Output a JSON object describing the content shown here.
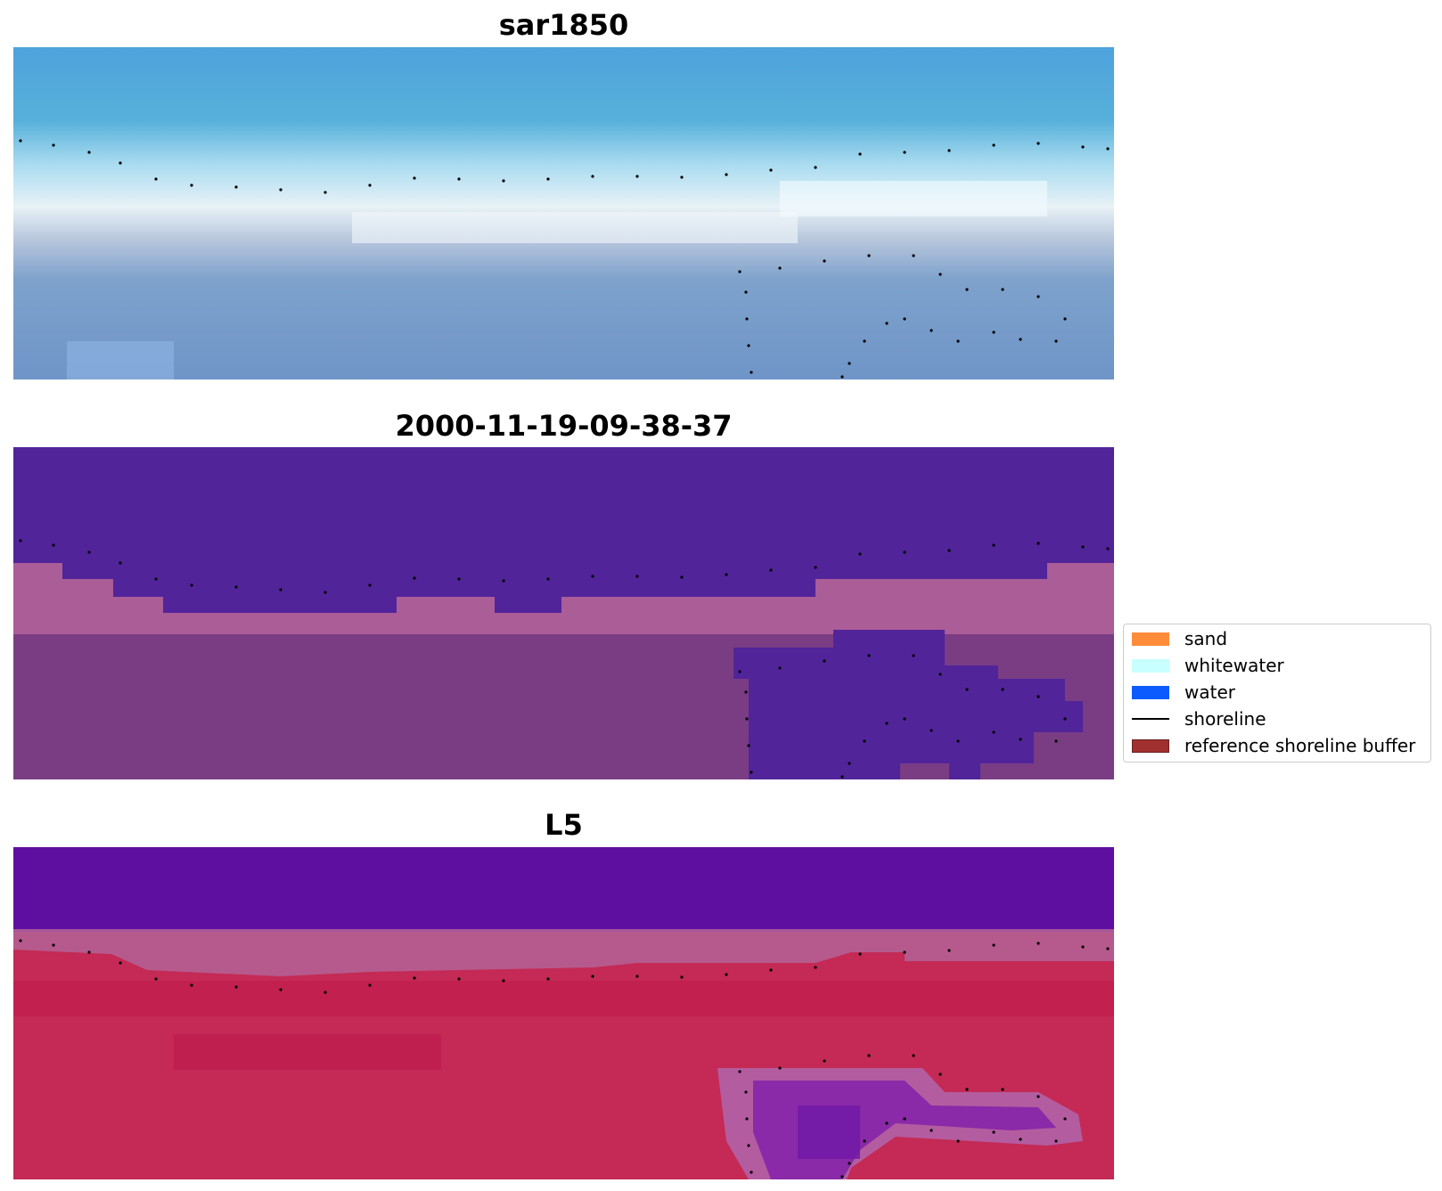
{
  "panels": [
    {
      "title": "sar1850",
      "style": "rgb"
    },
    {
      "title": "2000-11-19-09-38-37",
      "style": "classified"
    },
    {
      "title": "L5",
      "style": "index"
    }
  ],
  "legend": {
    "items": [
      {
        "label": "sand",
        "color": "#ff8c3a",
        "kind": "patch"
      },
      {
        "label": "whitewater",
        "color": "#c8ffff",
        "kind": "patch"
      },
      {
        "label": "water",
        "color": "#0b5bff",
        "kind": "patch"
      },
      {
        "label": "shoreline",
        "color": "#000000",
        "kind": "line"
      },
      {
        "label": "reference shoreline buffer",
        "color": "#a03030",
        "kind": "patch"
      }
    ]
  },
  "colors": {
    "sky_blue": "#4da7d9",
    "classified_water": "#52249a",
    "classified_land": "#9e4f8a",
    "index_water": "#5f0f9f",
    "index_land": "#c42a55"
  }
}
